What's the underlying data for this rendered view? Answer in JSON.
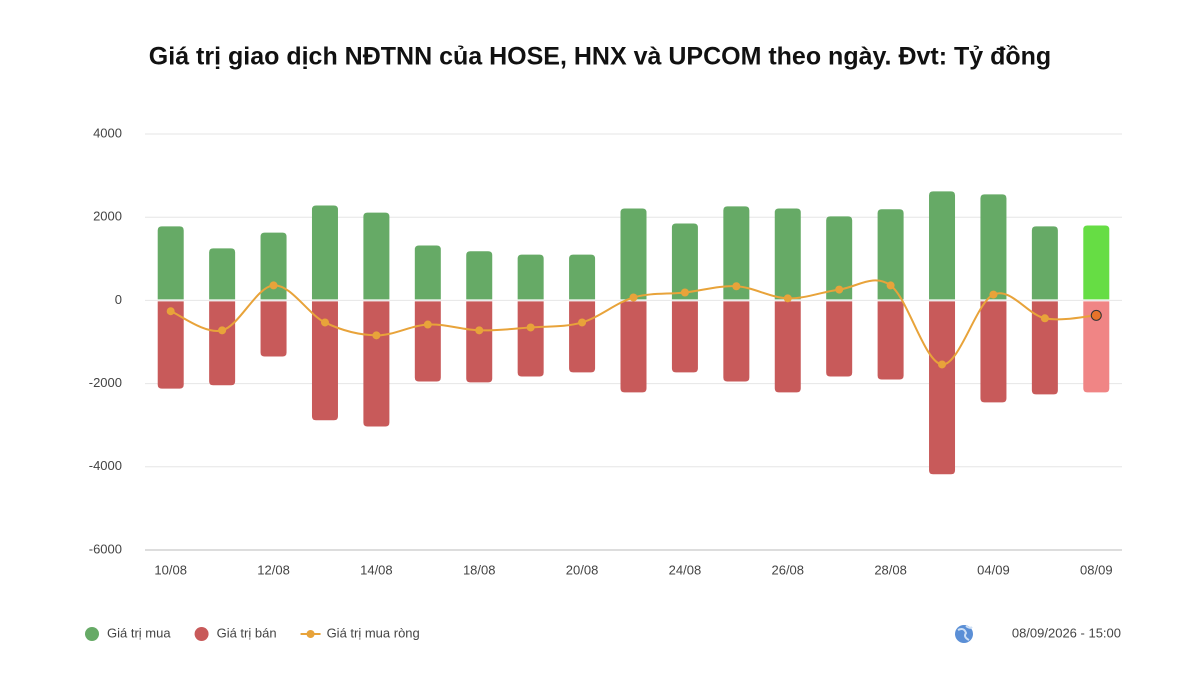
{
  "chart_data": {
    "type": "bar_line",
    "title": "Giá trị giao dịch NĐTNN của HOSE, HNX và UPCOM theo ngày. Đvt: Tỷ đồng",
    "categories": [
      "10/08",
      null,
      "12/08",
      null,
      "14/08",
      null,
      "18/08",
      null,
      "20/08",
      null,
      "24/08",
      null,
      "26/08",
      null,
      "28/08",
      null,
      "04/09",
      null,
      "08/09"
    ],
    "series": [
      {
        "name": "Giá trị mua",
        "type": "bar",
        "color": "#66aa66",
        "highlight_color": "#66dd44",
        "values": [
          1780,
          1250,
          1630,
          2280,
          2110,
          1320,
          1180,
          1100,
          1100,
          2210,
          1850,
          2260,
          2210,
          2020,
          2190,
          2620,
          2550,
          1780,
          1800
        ]
      },
      {
        "name": "Giá trị bán",
        "type": "bar",
        "color": "#c85a5a",
        "highlight_color": "#f08585",
        "values": [
          -2120,
          -2040,
          -1350,
          -2880,
          -3030,
          -1950,
          -1970,
          -1830,
          -1730,
          -2210,
          -1730,
          -1950,
          -2210,
          -1830,
          -1900,
          -4180,
          -2450,
          -2260,
          -2210
        ]
      },
      {
        "name": "Giá trị mua ròng",
        "type": "line",
        "color": "#e8a33a",
        "values": [
          -260,
          -720,
          360,
          -530,
          -840,
          -580,
          -720,
          -650,
          -530,
          70,
          190,
          340,
          50,
          260,
          360,
          -1540,
          140,
          -430,
          -360
        ]
      }
    ],
    "ylim": [
      -6000,
      4000
    ],
    "yticks": [
      -6000,
      -4000,
      -2000,
      0,
      2000,
      4000
    ],
    "grid": true,
    "legend": "bottom-left",
    "timestamp": "08/09/2026 - 15:00"
  }
}
